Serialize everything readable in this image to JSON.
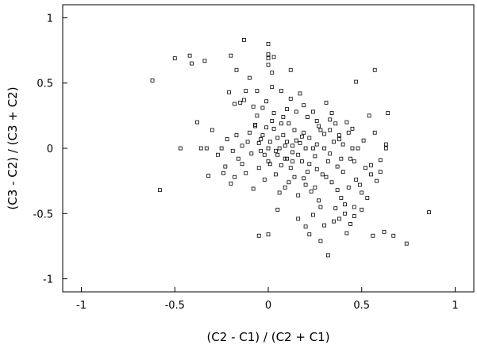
{
  "chart_data": {
    "type": "scatter",
    "title": "",
    "xlabel": "(C2 - C1) / (C2 + C1)",
    "ylabel": "(C3 - C2) / (C3 + C2)",
    "xlim": [
      -1.1,
      1.1
    ],
    "ylim": [
      -1.1,
      1.1
    ],
    "xticks": [
      -1,
      -0.5,
      0,
      0.5,
      1
    ],
    "yticks": [
      -1,
      -0.5,
      0,
      0.5,
      1
    ],
    "xtick_labels": [
      "-1",
      "-0.5",
      "0",
      "0.5",
      "1"
    ],
    "ytick_labels": [
      "-1",
      "-0.5",
      "0",
      "0.5",
      "1"
    ],
    "grid": false,
    "marker": "open-square",
    "points": [
      [
        -0.62,
        0.52
      ],
      [
        -0.5,
        0.69
      ],
      [
        -0.42,
        0.71
      ],
      [
        -0.41,
        0.65
      ],
      [
        -0.34,
        0.67
      ],
      [
        -0.2,
        0.71
      ],
      [
        -0.13,
        0.83
      ],
      [
        0.0,
        0.8
      ],
      [
        0.0,
        0.72
      ],
      [
        0.0,
        0.69
      ],
      [
        0.0,
        0.64
      ],
      [
        0.03,
        0.7
      ],
      [
        -0.17,
        0.6
      ],
      [
        0.57,
        0.6
      ],
      [
        0.47,
        0.51
      ],
      [
        -0.58,
        -0.32
      ],
      [
        -0.47,
        0.0
      ],
      [
        -0.38,
        0.2
      ],
      [
        -0.36,
        0.0
      ],
      [
        -0.33,
        0.0
      ],
      [
        -0.32,
        -0.21
      ],
      [
        -0.3,
        0.14
      ],
      [
        -0.25,
        0.0
      ],
      [
        -0.23,
        -0.14
      ],
      [
        -0.21,
        0.43
      ],
      [
        -0.2,
        -0.27
      ],
      [
        -0.18,
        0.34
      ],
      [
        -0.15,
        0.35
      ],
      [
        -0.13,
        0.37
      ],
      [
        -0.12,
        0.44
      ],
      [
        -0.1,
        0.54
      ],
      [
        -0.08,
        0.32
      ],
      [
        -0.07,
        0.18
      ],
      [
        -0.05,
        0.04
      ],
      [
        -0.04,
        -0.02
      ],
      [
        -0.03,
        0.1
      ],
      [
        -0.02,
        -0.05
      ],
      [
        0.0,
        0.0
      ],
      [
        0.0,
        -0.1
      ],
      [
        0.01,
        0.05
      ],
      [
        0.02,
        0.58
      ],
      [
        0.02,
        0.47
      ],
      [
        0.03,
        0.15
      ],
      [
        0.04,
        -0.2
      ],
      [
        0.05,
        0.08
      ],
      [
        0.05,
        -0.05
      ],
      [
        0.06,
        0.0
      ],
      [
        0.07,
        -0.13
      ],
      [
        0.08,
        0.1
      ],
      [
        0.09,
        -0.3
      ],
      [
        0.1,
        0.05
      ],
      [
        0.1,
        -0.08
      ],
      [
        0.11,
        0.19
      ],
      [
        0.12,
        -0.15
      ],
      [
        0.12,
        0.38
      ],
      [
        0.13,
        0.02
      ],
      [
        0.14,
        -0.22
      ],
      [
        0.15,
        0.06
      ],
      [
        0.16,
        -0.05
      ],
      [
        0.17,
        0.42
      ],
      [
        0.18,
        -0.1
      ],
      [
        0.19,
        0.12
      ],
      [
        0.2,
        -0.28
      ],
      [
        0.2,
        0.0
      ],
      [
        0.21,
        -0.18
      ],
      [
        0.22,
        0.08
      ],
      [
        0.23,
        -0.33
      ],
      [
        0.24,
        0.28
      ],
      [
        0.25,
        -0.06
      ],
      [
        0.26,
        0.03
      ],
      [
        0.27,
        -0.4
      ],
      [
        0.28,
        0.14
      ],
      [
        0.29,
        -0.2
      ],
      [
        0.3,
        0.0
      ],
      [
        0.31,
        0.35
      ],
      [
        0.32,
        -0.1
      ],
      [
        0.33,
        0.22
      ],
      [
        0.34,
        -0.26
      ],
      [
        0.35,
        0.05
      ],
      [
        0.36,
        -0.46
      ],
      [
        0.37,
        -0.14
      ],
      [
        0.38,
        0.1
      ],
      [
        0.39,
        -0.38
      ],
      [
        0.4,
        0.03
      ],
      [
        0.41,
        -0.5
      ],
      [
        0.42,
        0.2
      ],
      [
        0.43,
        -0.3
      ],
      [
        0.44,
        -0.08
      ],
      [
        0.45,
        0.15
      ],
      [
        0.46,
        -0.45
      ],
      [
        0.47,
        -0.24
      ],
      [
        0.48,
        0.0
      ],
      [
        0.5,
        -0.34
      ],
      [
        0.52,
        -0.15
      ],
      [
        0.54,
        0.25
      ],
      [
        0.55,
        -0.2
      ],
      [
        0.56,
        -0.67
      ],
      [
        0.6,
        -0.18
      ],
      [
        0.62,
        -0.64
      ],
      [
        0.63,
        0.03
      ],
      [
        0.63,
        0.0
      ],
      [
        0.64,
        0.27
      ],
      [
        0.67,
        -0.67
      ],
      [
        0.74,
        -0.73
      ],
      [
        0.86,
        -0.49
      ],
      [
        -0.18,
        -0.22
      ],
      [
        -0.16,
        -0.08
      ],
      [
        -0.14,
        0.02
      ],
      [
        -0.12,
        -0.19
      ],
      [
        -0.1,
        0.12
      ],
      [
        -0.09,
        -0.04
      ],
      [
        -0.08,
        -0.31
      ],
      [
        -0.06,
        0.25
      ],
      [
        -0.05,
        -0.15
      ],
      [
        -0.04,
        0.07
      ],
      [
        -0.02,
        -0.24
      ],
      [
        -0.01,
        0.16
      ],
      [
        0.01,
        -0.12
      ],
      [
        0.03,
        0.27
      ],
      [
        0.04,
        -0.02
      ],
      [
        0.06,
        -0.34
      ],
      [
        0.07,
        0.19
      ],
      [
        0.09,
        -0.08
      ],
      [
        0.1,
        0.3
      ],
      [
        0.11,
        -0.26
      ],
      [
        0.13,
        -0.1
      ],
      [
        0.14,
        0.14
      ],
      [
        0.16,
        -0.36
      ],
      [
        0.17,
        0.04
      ],
      [
        0.19,
        -0.23
      ],
      [
        0.21,
        0.24
      ],
      [
        0.22,
        -0.12
      ],
      [
        0.24,
        0.0
      ],
      [
        0.25,
        -0.3
      ],
      [
        0.27,
        0.17
      ],
      [
        0.28,
        -0.45
      ],
      [
        0.3,
        0.11
      ],
      [
        0.31,
        -0.22
      ],
      [
        0.33,
        -0.04
      ],
      [
        0.34,
        0.27
      ],
      [
        0.35,
        -0.56
      ],
      [
        0.37,
        -0.32
      ],
      [
        0.38,
        0.07
      ],
      [
        0.4,
        -0.18
      ],
      [
        0.41,
        -0.43
      ],
      [
        0.43,
        0.12
      ],
      [
        0.44,
        -0.58
      ],
      [
        0.46,
        -0.1
      ],
      [
        0.49,
        -0.28
      ],
      [
        0.51,
        0.06
      ],
      [
        0.53,
        -0.38
      ],
      [
        0.55,
        -0.13
      ],
      [
        0.45,
        0.0
      ],
      [
        0.42,
        -0.65
      ],
      [
        0.32,
        -0.82
      ],
      [
        0.28,
        -0.71
      ],
      [
        0.22,
        -0.66
      ],
      [
        0.05,
        -0.47
      ],
      [
        0.0,
        -0.66
      ],
      [
        -0.05,
        -0.67
      ],
      [
        0.36,
        0.19
      ],
      [
        0.39,
        -0.08
      ],
      [
        0.33,
        0.14
      ],
      [
        0.26,
        0.21
      ],
      [
        0.19,
        0.33
      ],
      [
        0.15,
        0.28
      ],
      [
        0.08,
        0.24
      ],
      [
        0.02,
        0.21
      ],
      [
        -0.03,
        0.31
      ],
      [
        -0.07,
        0.17
      ],
      [
        -0.11,
        0.05
      ],
      [
        -0.14,
        -0.12
      ],
      [
        -0.17,
        0.1
      ],
      [
        -0.19,
        -0.02
      ],
      [
        -0.22,
        0.07
      ],
      [
        -0.24,
        -0.19
      ],
      [
        -0.27,
        -0.05
      ],
      [
        0.16,
        -0.54
      ],
      [
        0.2,
        -0.6
      ],
      [
        0.24,
        -0.51
      ],
      [
        0.3,
        -0.59
      ],
      [
        0.38,
        -0.54
      ],
      [
        0.46,
        -0.52
      ],
      [
        0.5,
        -0.47
      ],
      [
        0.57,
        0.12
      ],
      [
        0.6,
        -0.09
      ],
      [
        0.58,
        -0.25
      ],
      [
        0.12,
        0.6
      ],
      [
        0.07,
        0.44
      ],
      [
        -0.01,
        0.36
      ],
      [
        -0.06,
        0.44
      ],
      [
        0.26,
        -0.16
      ],
      [
        0.18,
        0.09
      ],
      [
        0.13,
        -0.03
      ],
      [
        0.09,
        0.02
      ]
    ]
  }
}
